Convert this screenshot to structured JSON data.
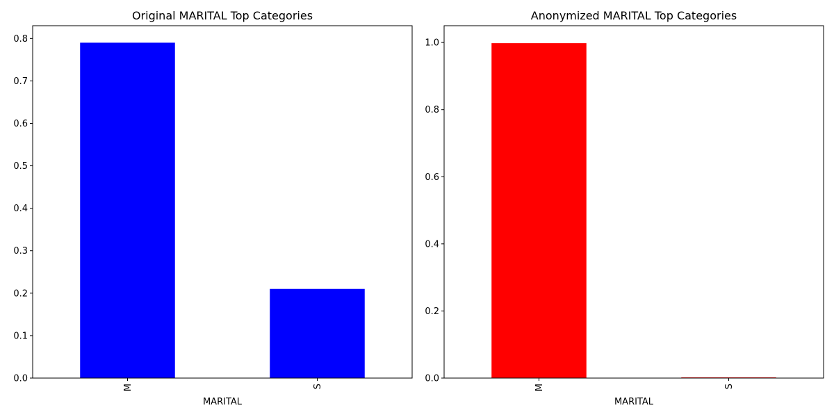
{
  "chart_data": [
    {
      "type": "bar",
      "title": "Original MARITAL Top Categories",
      "xlabel": "MARITAL",
      "ylabel": "",
      "categories": [
        "M",
        "S"
      ],
      "values": [
        0.79,
        0.21
      ],
      "ylim": [
        0,
        0.83
      ],
      "yticks": [
        "0.0",
        "0.1",
        "0.2",
        "0.3",
        "0.4",
        "0.5",
        "0.6",
        "0.7",
        "0.8"
      ],
      "ytick_values": [
        0,
        0.1,
        0.2,
        0.3,
        0.4,
        0.5,
        0.6,
        0.7,
        0.8
      ],
      "bar_color": "#0000ff",
      "grid": false,
      "legend": "none"
    },
    {
      "type": "bar",
      "title": "Anonymized MARITAL Top Categories",
      "xlabel": "MARITAL",
      "ylabel": "",
      "categories": [
        "M",
        "S"
      ],
      "values": [
        0.998,
        0.002
      ],
      "ylim": [
        0,
        1.05
      ],
      "yticks": [
        "0.0",
        "0.2",
        "0.4",
        "0.6",
        "0.8",
        "1.0"
      ],
      "ytick_values": [
        0,
        0.2,
        0.4,
        0.6,
        0.8,
        1.0
      ],
      "bar_color": "#ff0000",
      "grid": false,
      "legend": "none"
    }
  ]
}
